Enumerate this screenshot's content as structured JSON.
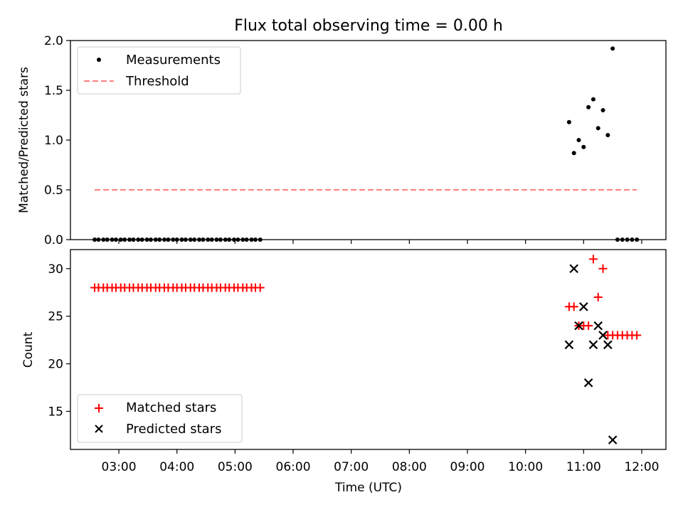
{
  "chart_data": [
    {
      "type": "scatter",
      "title": "Flux total observing time = 0.00 h",
      "xlabel": "",
      "ylabel": "Matched/Predicted stars",
      "xlim": [
        "02:10",
        "12:25"
      ],
      "ylim": [
        0,
        2.0
      ],
      "yticks": [
        "0.0",
        "0.5",
        "1.0",
        "1.5",
        "2.0"
      ],
      "legend_position": "top-left",
      "series": [
        {
          "name": "Measurements",
          "kind": "points",
          "color": "#000000",
          "points": [
            [
              "02:35",
              0
            ],
            [
              "02:39",
              0
            ],
            [
              "02:44",
              0
            ],
            [
              "02:48",
              0
            ],
            [
              "02:53",
              0
            ],
            [
              "02:57",
              0
            ],
            [
              "03:02",
              0
            ],
            [
              "03:06",
              0
            ],
            [
              "03:11",
              0
            ],
            [
              "03:15",
              0
            ],
            [
              "03:20",
              0
            ],
            [
              "03:24",
              0
            ],
            [
              "03:29",
              0
            ],
            [
              "03:33",
              0
            ],
            [
              "03:38",
              0
            ],
            [
              "03:42",
              0
            ],
            [
              "03:47",
              0
            ],
            [
              "03:51",
              0
            ],
            [
              "03:56",
              0
            ],
            [
              "04:00",
              0
            ],
            [
              "04:05",
              0
            ],
            [
              "04:09",
              0
            ],
            [
              "04:14",
              0
            ],
            [
              "04:18",
              0
            ],
            [
              "04:23",
              0
            ],
            [
              "04:27",
              0
            ],
            [
              "04:32",
              0
            ],
            [
              "04:36",
              0
            ],
            [
              "04:41",
              0
            ],
            [
              "04:45",
              0
            ],
            [
              "04:50",
              0
            ],
            [
              "04:54",
              0
            ],
            [
              "04:59",
              0
            ],
            [
              "05:03",
              0
            ],
            [
              "05:08",
              0
            ],
            [
              "05:12",
              0
            ],
            [
              "05:17",
              0
            ],
            [
              "05:21",
              0
            ],
            [
              "05:26",
              0
            ],
            [
              "10:45",
              1.18
            ],
            [
              "10:50",
              0.87
            ],
            [
              "10:55",
              1.0
            ],
            [
              "11:00",
              0.93
            ],
            [
              "11:05",
              1.33
            ],
            [
              "11:10",
              1.41
            ],
            [
              "11:15",
              1.12
            ],
            [
              "11:20",
              1.3
            ],
            [
              "11:25",
              1.05
            ],
            [
              "11:30",
              1.92
            ],
            [
              "11:35",
              0
            ],
            [
              "11:40",
              0
            ],
            [
              "11:45",
              0
            ],
            [
              "11:50",
              0
            ],
            [
              "11:55",
              0
            ]
          ]
        },
        {
          "name": "Threshold",
          "kind": "dashed-line",
          "color": "#ff7f7f",
          "points": [
            [
              "02:35",
              0.5
            ],
            [
              "11:55",
              0.5
            ]
          ]
        }
      ]
    },
    {
      "type": "scatter",
      "title": "",
      "xlabel": "Time (UTC)",
      "ylabel": "Count",
      "xlim": [
        "02:10",
        "12:25"
      ],
      "ylim": [
        11,
        32
      ],
      "yticks": [
        "15",
        "20",
        "25",
        "30"
      ],
      "xticks": [
        "03:00",
        "04:00",
        "05:00",
        "06:00",
        "07:00",
        "08:00",
        "09:00",
        "10:00",
        "11:00",
        "12:00"
      ],
      "legend_position": "bottom-left",
      "series": [
        {
          "name": "Matched stars",
          "kind": "plus",
          "color": "#ff0000",
          "points": [
            [
              "02:35",
              28
            ],
            [
              "02:39",
              28
            ],
            [
              "02:44",
              28
            ],
            [
              "02:48",
              28
            ],
            [
              "02:53",
              28
            ],
            [
              "02:57",
              28
            ],
            [
              "03:02",
              28
            ],
            [
              "03:06",
              28
            ],
            [
              "03:11",
              28
            ],
            [
              "03:15",
              28
            ],
            [
              "03:20",
              28
            ],
            [
              "03:24",
              28
            ],
            [
              "03:29",
              28
            ],
            [
              "03:33",
              28
            ],
            [
              "03:38",
              28
            ],
            [
              "03:42",
              28
            ],
            [
              "03:47",
              28
            ],
            [
              "03:51",
              28
            ],
            [
              "03:56",
              28
            ],
            [
              "04:00",
              28
            ],
            [
              "04:05",
              28
            ],
            [
              "04:09",
              28
            ],
            [
              "04:14",
              28
            ],
            [
              "04:18",
              28
            ],
            [
              "04:23",
              28
            ],
            [
              "04:27",
              28
            ],
            [
              "04:32",
              28
            ],
            [
              "04:36",
              28
            ],
            [
              "04:41",
              28
            ],
            [
              "04:45",
              28
            ],
            [
              "04:50",
              28
            ],
            [
              "04:54",
              28
            ],
            [
              "04:59",
              28
            ],
            [
              "05:03",
              28
            ],
            [
              "05:08",
              28
            ],
            [
              "05:12",
              28
            ],
            [
              "05:17",
              28
            ],
            [
              "05:21",
              28
            ],
            [
              "05:26",
              28
            ],
            [
              "10:45",
              26
            ],
            [
              "10:50",
              26
            ],
            [
              "10:55",
              24
            ],
            [
              "11:00",
              24
            ],
            [
              "11:05",
              24
            ],
            [
              "11:10",
              31
            ],
            [
              "11:15",
              27
            ],
            [
              "11:20",
              30
            ],
            [
              "11:25",
              23
            ],
            [
              "11:30",
              23
            ],
            [
              "11:35",
              23
            ],
            [
              "11:40",
              23
            ],
            [
              "11:45",
              23
            ],
            [
              "11:50",
              23
            ],
            [
              "11:55",
              23
            ]
          ]
        },
        {
          "name": "Predicted stars",
          "kind": "x",
          "color": "#000000",
          "points": [
            [
              "10:45",
              22
            ],
            [
              "10:50",
              30
            ],
            [
              "10:55",
              24
            ],
            [
              "11:00",
              26
            ],
            [
              "11:05",
              18
            ],
            [
              "11:10",
              22
            ],
            [
              "11:15",
              24
            ],
            [
              "11:20",
              23
            ],
            [
              "11:25",
              22
            ],
            [
              "11:30",
              12
            ]
          ]
        }
      ]
    }
  ]
}
